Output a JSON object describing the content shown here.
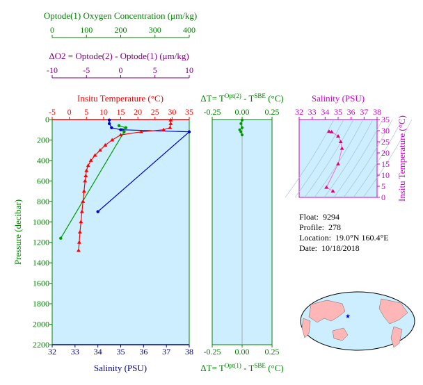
{
  "colors": {
    "oxygen": "#008000",
    "delta_o2": "#800080",
    "temperature": "#ff0000",
    "salinity": "#000080",
    "delta_t": "#008000",
    "ts_axis": "#cc00cc",
    "plot_bg": "#cceeff",
    "temp_line": "#ff0000",
    "sal_line": "#0000cc",
    "oxy_line": "#009900"
  },
  "axes_text": {
    "oxygen_title": "Optode(1) Oxygen Concentration (μm/kg)",
    "oxygen_ticks": [
      "0",
      "100",
      "200",
      "300",
      "400"
    ],
    "delta_o2_title": "ΔO2 = Optode(2) - Optode(1)   (μm/kg)",
    "delta_o2_ticks": [
      "-10",
      "-5",
      "0",
      "5",
      "10"
    ],
    "temp_title": "Insitu Temperature (°C)",
    "temp_ticks": [
      "-5",
      "0",
      "5",
      "10",
      "15",
      "20",
      "25",
      "30",
      "35"
    ],
    "salinity_title": "Salinity (PSU)",
    "salinity_ticks": [
      "32",
      "33",
      "34",
      "35",
      "36",
      "37",
      "38"
    ],
    "pressure_title": "Pressure (decibar)",
    "pressure_ticks": [
      "0",
      "200",
      "400",
      "600",
      "800",
      "1000",
      "1200",
      "1400",
      "1600",
      "1800",
      "2000",
      "2200"
    ],
    "dt_top_title": "ΔT= TOpt(2) - TSBE (°C)",
    "dt_bottom_title": "ΔT= TOpt(1) - TSBE (°C)",
    "dt_ticks": [
      "-0.25",
      "0.00",
      "0.25"
    ],
    "ts_sal_title": "Salinity (PSU)",
    "ts_sal_ticks": [
      "32",
      "33",
      "34",
      "35",
      "36",
      "37",
      "38"
    ],
    "ts_temp_title": "Insitu Temperature (°C)",
    "ts_temp_ticks": [
      "0",
      "5",
      "10",
      "15",
      "20",
      "25",
      "30",
      "35"
    ]
  },
  "info": {
    "float_label": "Float:",
    "float_value": "9294",
    "profile_label": "Profile:",
    "profile_value": "278",
    "location_label": "Location:",
    "location_value": "19.0°N  160.4°E",
    "date_label": "Date:",
    "date_value": "10/18/2018"
  },
  "chart_data": [
    {
      "type": "line",
      "name": "profile",
      "y_axis": "Pressure (decibar)",
      "ylim": [
        2200,
        0
      ],
      "temperature": {
        "xlim": [
          -5,
          35
        ],
        "pressure": [
          5,
          40,
          80,
          100,
          120,
          150,
          200,
          250,
          300,
          350,
          400,
          450,
          500,
          550,
          600,
          700,
          800,
          900,
          1000,
          1100,
          1200,
          1280
        ],
        "values": [
          29.6,
          29.6,
          29.4,
          27.5,
          21,
          15,
          12.5,
          10.5,
          9,
          7.5,
          6.3,
          5.5,
          5,
          4.8,
          4.6,
          4.3,
          4.0,
          3.7,
          3.4,
          3.1,
          2.9,
          2.7
        ]
      },
      "salinity": {
        "xlim": [
          32,
          38
        ],
        "pressure": [
          5,
          40,
          80,
          100,
          120,
          900
        ],
        "values": [
          34.5,
          34.5,
          34.6,
          35.0,
          38.0,
          34.0
        ]
      },
      "oxygen": {
        "xlim": [
          0,
          400
        ],
        "pressure": [
          60,
          80,
          100,
          120,
          1160
        ],
        "values": [
          195,
          215,
          205,
          210,
          25
        ]
      }
    },
    {
      "type": "line",
      "name": "delta_t",
      "xlim": [
        -0.25,
        0.25
      ],
      "ylim": [
        2200,
        0
      ],
      "pressure": [
        5,
        40,
        80,
        100,
        120,
        150
      ],
      "values": [
        0.0,
        -0.01,
        0.0,
        -0.02,
        -0.01,
        0.0
      ]
    },
    {
      "type": "scatter",
      "name": "ts_diagram",
      "xlim": [
        32,
        38
      ],
      "ylim": [
        0,
        35
      ],
      "salinity": [
        34.3,
        34.5,
        35.0,
        35.2,
        35.3,
        35.0,
        34.1,
        34.6
      ],
      "temperature": [
        29.6,
        29.4,
        27.5,
        25,
        22,
        15,
        4.5,
        2.8
      ]
    }
  ]
}
